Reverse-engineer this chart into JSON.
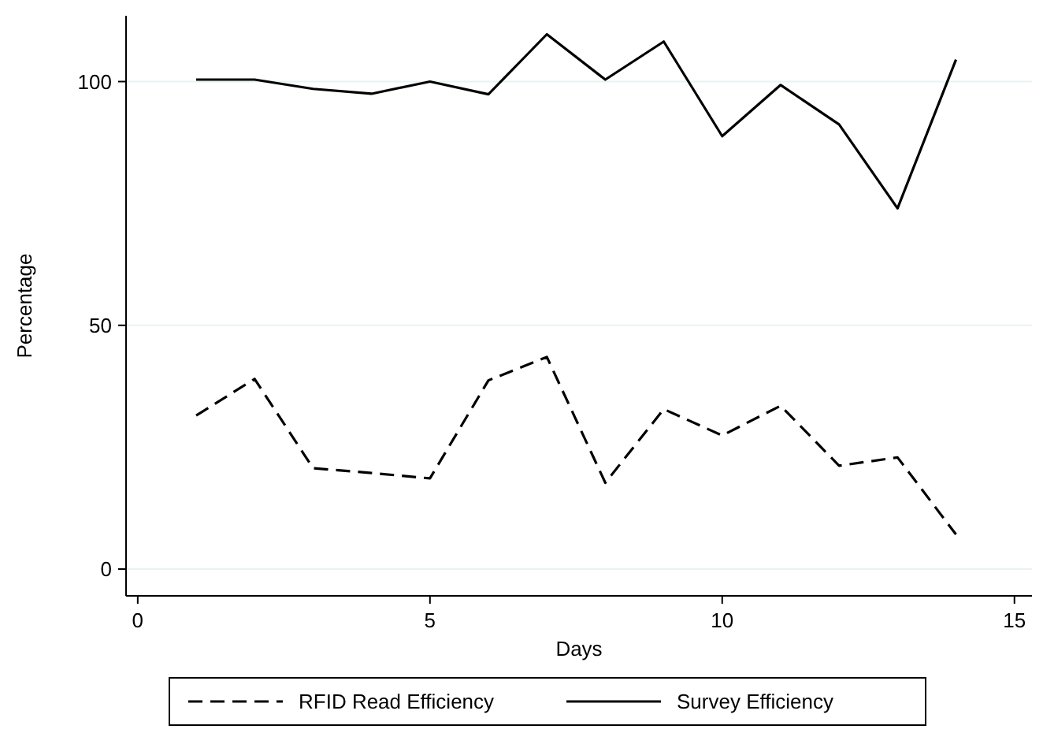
{
  "chart_data": {
    "type": "line",
    "xlabel": "Days",
    "ylabel": "Percentage",
    "x": [
      1,
      2,
      3,
      4,
      5,
      6,
      7,
      8,
      9,
      10,
      11,
      12,
      13,
      14
    ],
    "series": [
      {
        "name": "RFID Read Efficiency",
        "color": "#000000",
        "line_style": "dashed",
        "values": [
          31.5,
          39,
          20.7,
          19.7,
          18.6,
          38.7,
          43.5,
          17.7,
          32.8,
          27.4,
          33.5,
          21.2,
          22.9,
          7.1
        ]
      },
      {
        "name": "Survey Efficiency",
        "color": "#000000",
        "line_style": "solid",
        "values": [
          100.4,
          100.4,
          98.5,
          97.5,
          100,
          97.4,
          109.7,
          100.4,
          108.2,
          88.8,
          99.3,
          91.2,
          74,
          104.5
        ]
      }
    ],
    "xlim": [
      -0.2,
      15.3
    ],
    "xticks": [
      0,
      5,
      10,
      15
    ],
    "ylim": [
      -5.5,
      113.5
    ],
    "yticks": [
      0,
      50,
      100
    ],
    "grid": "y",
    "legend": "bottom",
    "marker": "none"
  }
}
